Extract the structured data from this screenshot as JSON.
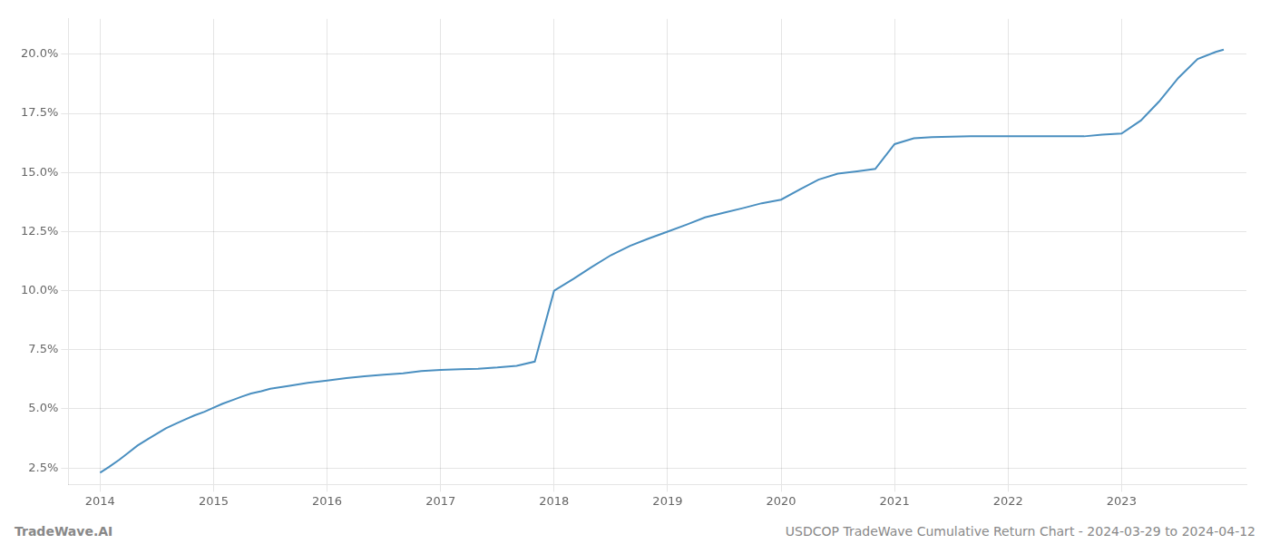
{
  "chart_data": {
    "type": "line",
    "title": "USDCOP TradeWave Cumulative Return Chart - 2024-03-29 to 2024-04-12",
    "annotations": [
      "TradeWave.AI"
    ],
    "color": "#4a8fc0",
    "grid": true,
    "x": [
      2014.0,
      2014.08,
      2014.17,
      2014.25,
      2014.33,
      2014.42,
      2014.5,
      2014.58,
      2014.67,
      2014.75,
      2014.83,
      2014.92,
      2015.0,
      2015.08,
      2015.17,
      2015.25,
      2015.33,
      2015.42,
      2015.5,
      2015.67,
      2015.83,
      2016.0,
      2016.17,
      2016.33,
      2016.5,
      2016.67,
      2016.83,
      2017.0,
      2017.17,
      2017.33,
      2017.5,
      2017.67,
      2017.83,
      2018.0,
      2018.17,
      2018.33,
      2018.5,
      2018.67,
      2018.83,
      2019.0,
      2019.17,
      2019.33,
      2019.5,
      2019.67,
      2019.83,
      2020.0,
      2020.17,
      2020.33,
      2020.5,
      2020.67,
      2020.83,
      2021.0,
      2021.17,
      2021.33,
      2021.5,
      2021.67,
      2021.83,
      2022.0,
      2022.17,
      2022.33,
      2022.5,
      2022.67,
      2022.83,
      2023.0,
      2023.17,
      2023.33,
      2023.5,
      2023.67,
      2023.83,
      2023.9
    ],
    "values": [
      2.3,
      2.55,
      2.85,
      3.15,
      3.45,
      3.72,
      3.95,
      4.18,
      4.38,
      4.55,
      4.72,
      4.88,
      5.05,
      5.22,
      5.38,
      5.52,
      5.65,
      5.75,
      5.85,
      5.98,
      6.1,
      6.2,
      6.3,
      6.38,
      6.45,
      6.5,
      6.6,
      6.65,
      6.68,
      6.7,
      6.75,
      6.82,
      7.0,
      10.0,
      10.5,
      11.0,
      11.5,
      11.9,
      12.2,
      12.5,
      12.8,
      13.1,
      13.3,
      13.5,
      13.7,
      13.85,
      14.3,
      14.7,
      14.95,
      15.05,
      15.15,
      16.2,
      16.45,
      16.5,
      16.52,
      16.53,
      16.53,
      16.53,
      16.53,
      16.53,
      16.53,
      16.53,
      16.6,
      16.65,
      17.2,
      18.0,
      19.0,
      19.8,
      20.1,
      20.2
    ],
    "xlim": [
      2013.72,
      2024.1
    ],
    "ylim": [
      1.8,
      21.5
    ],
    "xticks": [
      2014,
      2015,
      2016,
      2017,
      2018,
      2019,
      2020,
      2021,
      2022,
      2023
    ],
    "yticks": [
      {
        "value": 2.5,
        "label": "2.5%"
      },
      {
        "value": 5.0,
        "label": "5.0%"
      },
      {
        "value": 7.5,
        "label": "7.5%"
      },
      {
        "value": 10.0,
        "label": "10.0%"
      },
      {
        "value": 12.5,
        "label": "12.5%"
      },
      {
        "value": 15.0,
        "label": "15.0%"
      },
      {
        "value": 17.5,
        "label": "17.5%"
      },
      {
        "value": 20.0,
        "label": "20.0%"
      }
    ]
  }
}
